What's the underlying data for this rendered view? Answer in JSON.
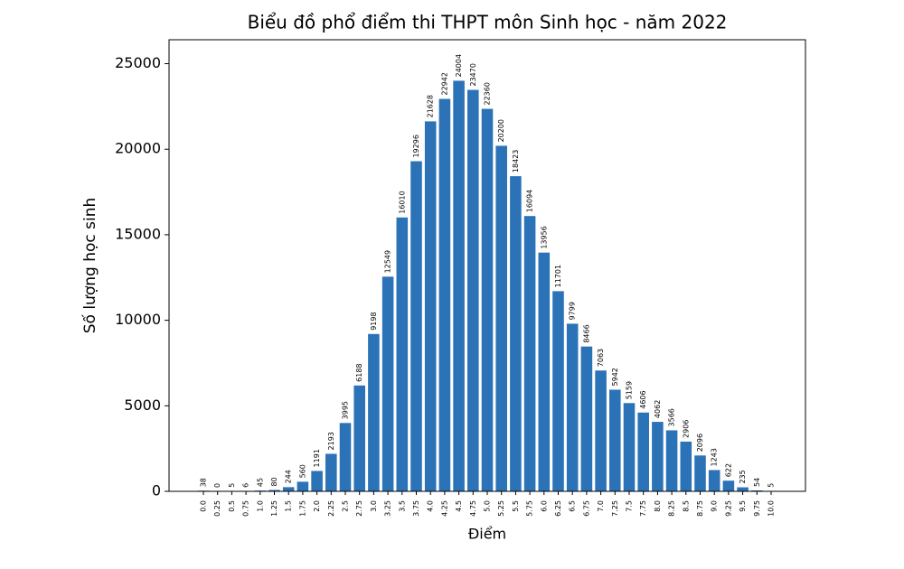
{
  "chart_data": {
    "type": "bar",
    "title": "Biểu đồ phổ điểm thi THPT môn Sinh học - năm 2022",
    "x_label": "Điểm",
    "y_label": "Số lượng học sinh",
    "categories": [
      "0.0",
      "0.25",
      "0.5",
      "0.75",
      "1.0",
      "1.25",
      "1.5",
      "1.75",
      "2.0",
      "2.25",
      "2.5",
      "2.75",
      "3.0",
      "3.25",
      "3.5",
      "3.75",
      "4.0",
      "4.25",
      "4.5",
      "4.75",
      "5.0",
      "5.25",
      "5.5",
      "5.75",
      "6.0",
      "6.25",
      "6.5",
      "6.75",
      "7.0",
      "7.25",
      "7.5",
      "7.75",
      "8.0",
      "8.25",
      "8.5",
      "8.75",
      "9.0",
      "9.25",
      "9.5",
      "9.75",
      "10.0"
    ],
    "values": [
      38,
      0,
      5,
      6,
      45,
      80,
      244,
      560,
      1191,
      2193,
      3995,
      6188,
      9198,
      12549,
      16010,
      19296,
      21628,
      22942,
      24004,
      23470,
      22360,
      20200,
      18423,
      16094,
      13956,
      11701,
      9799,
      8466,
      7063,
      5942,
      5159,
      4606,
      4062,
      3566,
      2906,
      2096,
      1243,
      622,
      235,
      54,
      5
    ],
    "color": "#2c72b6",
    "ylim": [
      0,
      26400
    ],
    "yticks": [
      0,
      5000,
      10000,
      15000,
      20000,
      25000
    ],
    "grid": false
  }
}
